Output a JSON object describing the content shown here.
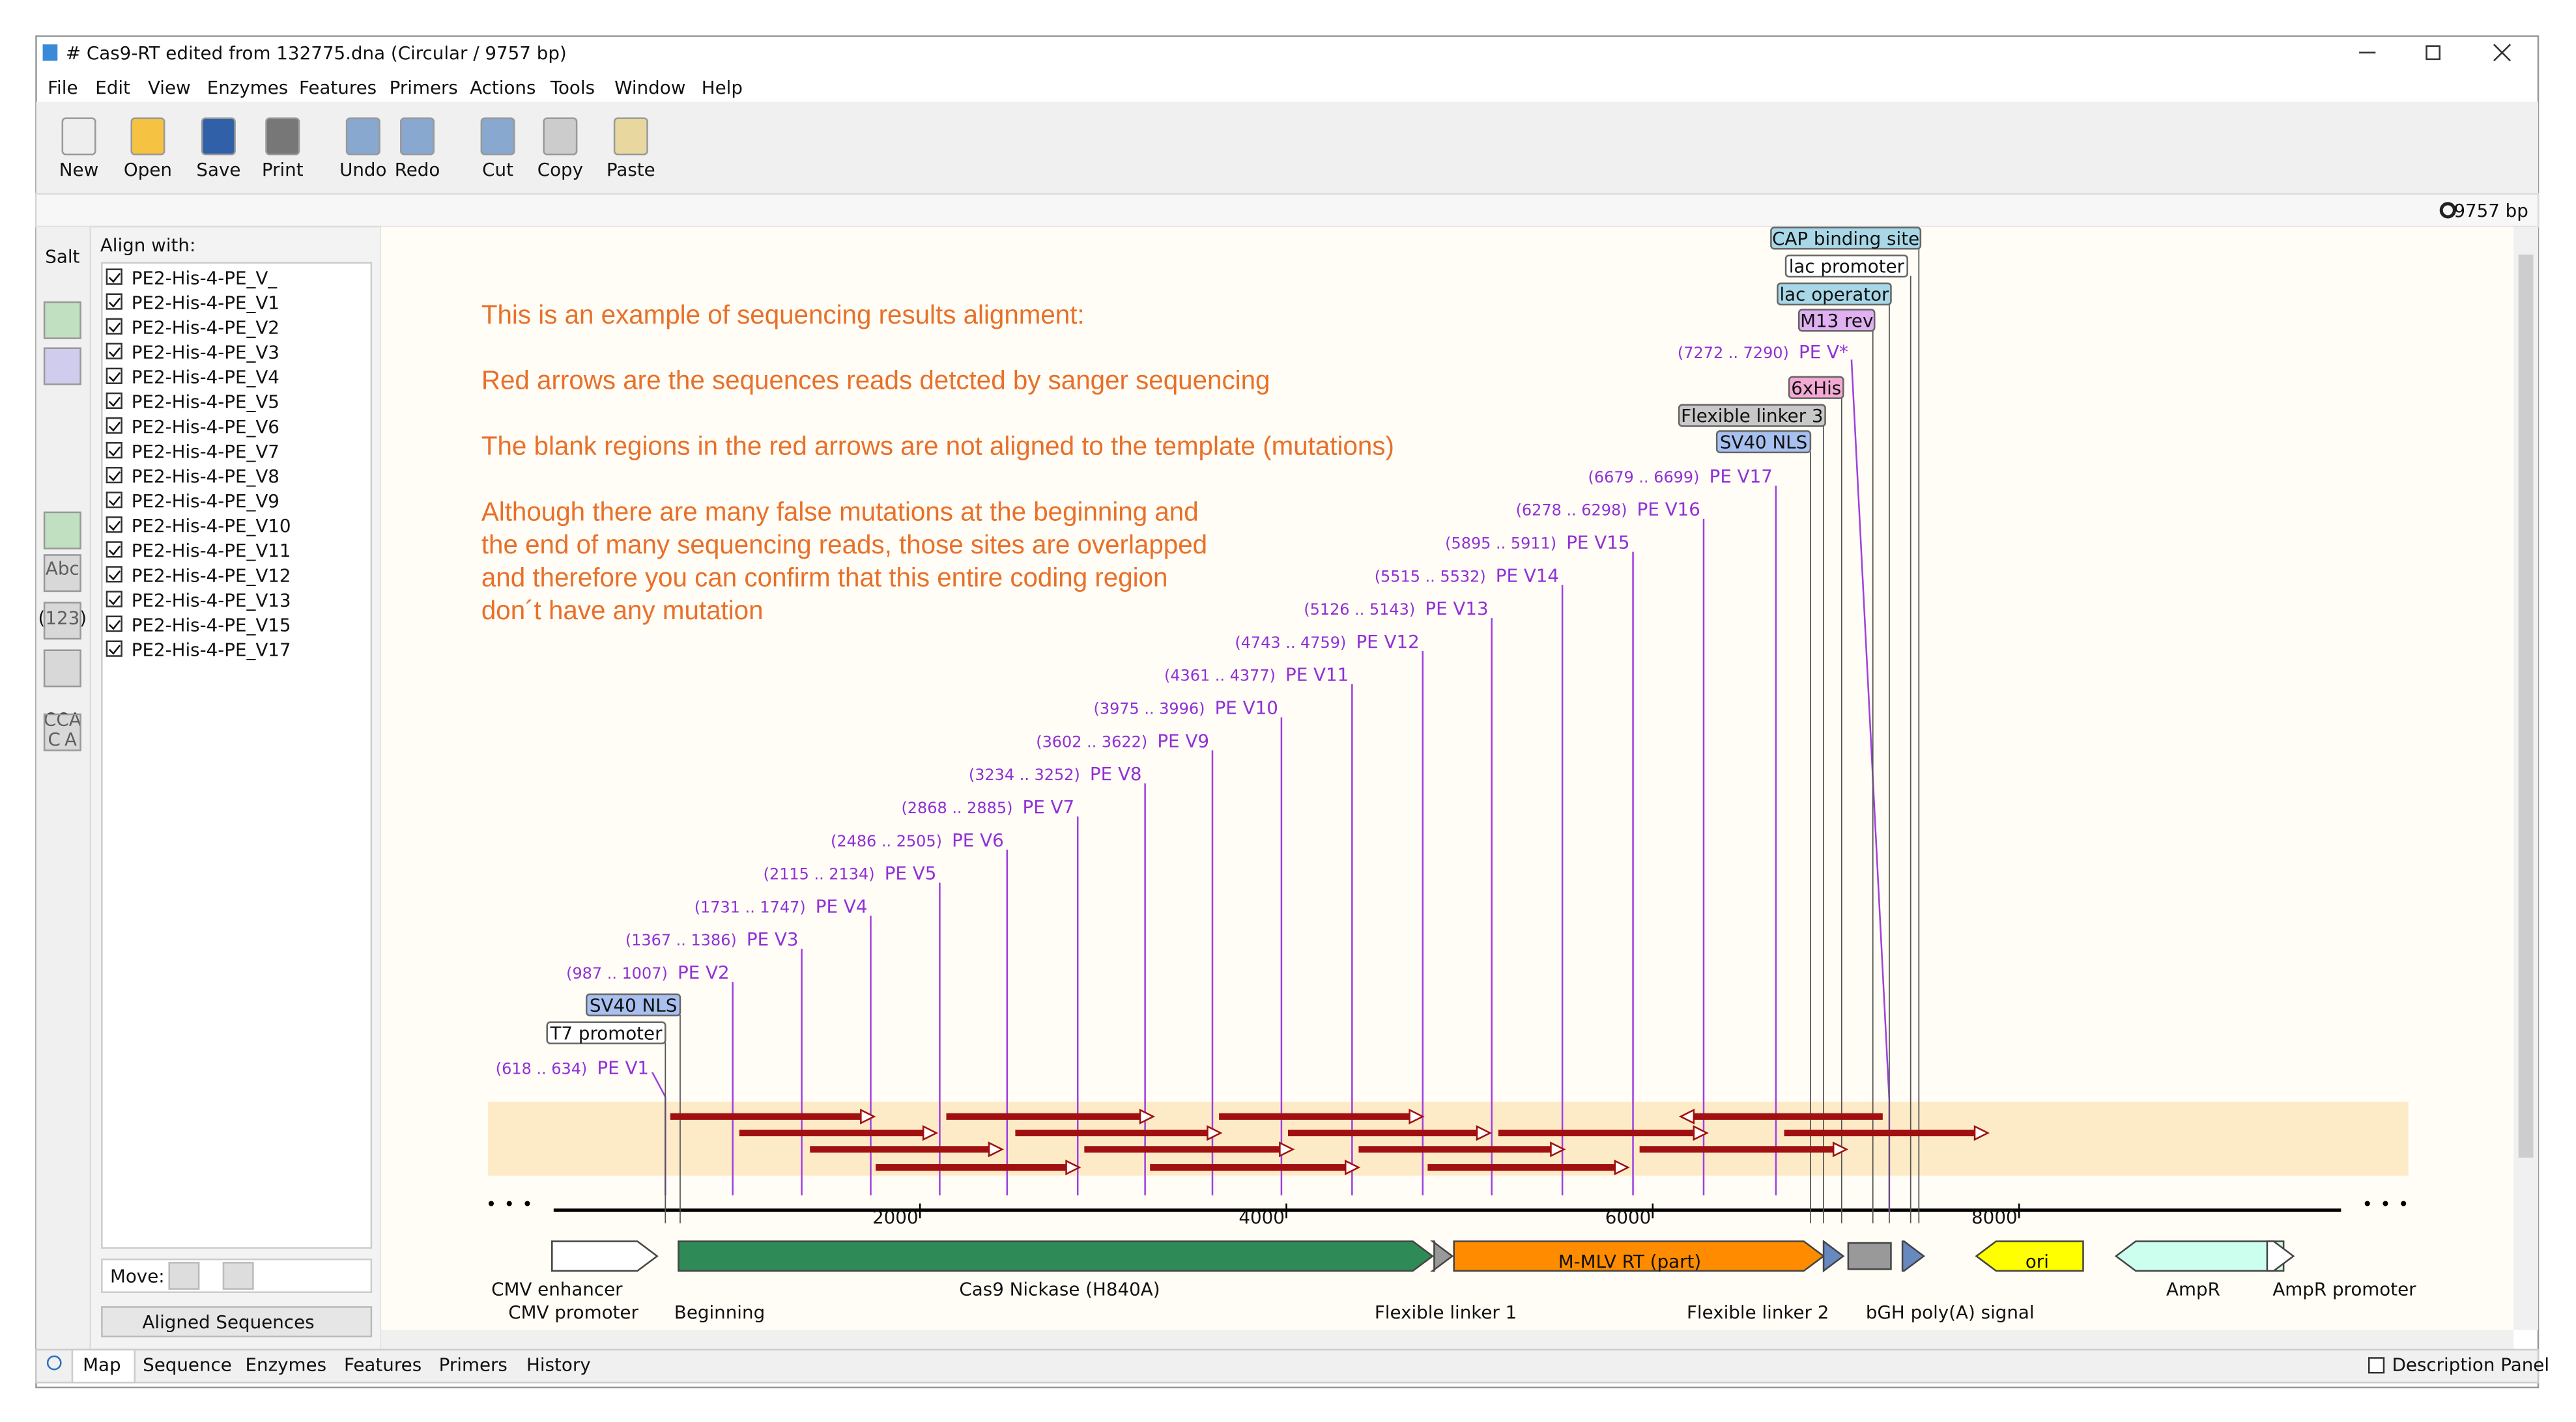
{
  "window": {
    "title": "# Cas9-RT edited from 132775.dna  (Circular / 9757 bp)",
    "menu": [
      "File",
      "Edit",
      "View",
      "Enzymes",
      "Features",
      "Primers",
      "Actions",
      "Tools",
      "Window",
      "Help"
    ],
    "toolbar": [
      "New",
      "Open",
      "Save",
      "Print",
      "Undo",
      "Redo",
      "Cut",
      "Copy",
      "Paste"
    ],
    "status": "9757 bp"
  },
  "left_tools": [
    "Salt",
    "Abc",
    "(123)",
    "CCA",
    "C",
    "A"
  ],
  "align_panel": {
    "title": "Align with:",
    "items": [
      "PE2-His-4-PE_V_",
      "PE2-His-4-PE_V1",
      "PE2-His-4-PE_V2",
      "PE2-His-4-PE_V3",
      "PE2-His-4-PE_V4",
      "PE2-His-4-PE_V5",
      "PE2-His-4-PE_V6",
      "PE2-His-4-PE_V7",
      "PE2-His-4-PE_V8",
      "PE2-His-4-PE_V9",
      "PE2-His-4-PE_V10",
      "PE2-His-4-PE_V11",
      "PE2-His-4-PE_V12",
      "PE2-His-4-PE_V13",
      "PE2-His-4-PE_V15",
      "PE2-His-4-PE_V17"
    ],
    "move_label": "Move:",
    "dropdown": "Aligned Sequences"
  },
  "map": {
    "notes": [
      "This is an example of sequencing results alignment:",
      "Red arrows are the sequences reads detcted by sanger sequencing",
      "The blank regions in the red arrows are not aligned to the template (mutations)",
      "Although there are many false mutations at the beginning and",
      "the end of many sequencing reads, those sites are overlapped",
      "and therefore you can confirm that this entire coding region",
      "don´t have any mutation"
    ],
    "primers": [
      {
        "range": "(618 .. 634)",
        "name": "PE V1"
      },
      {
        "range": "(987 .. 1007)",
        "name": "PE V2"
      },
      {
        "range": "(1367 .. 1386)",
        "name": "PE V3"
      },
      {
        "range": "(1731 .. 1747)",
        "name": "PE V4"
      },
      {
        "range": "(2115 .. 2134)",
        "name": "PE V5"
      },
      {
        "range": "(2486 .. 2505)",
        "name": "PE V6"
      },
      {
        "range": "(2868 .. 2885)",
        "name": "PE V7"
      },
      {
        "range": "(3234 .. 3252)",
        "name": "PE V8"
      },
      {
        "range": "(3602 .. 3622)",
        "name": "PE V9"
      },
      {
        "range": "(3975 .. 3996)",
        "name": "PE V10"
      },
      {
        "range": "(4361 .. 4377)",
        "name": "PE V11"
      },
      {
        "range": "(4743 .. 4759)",
        "name": "PE V12"
      },
      {
        "range": "(5126 .. 5143)",
        "name": "PE V13"
      },
      {
        "range": "(5515 .. 5532)",
        "name": "PE V14"
      },
      {
        "range": "(5895 .. 5911)",
        "name": "PE V15"
      },
      {
        "range": "(6278 .. 6298)",
        "name": "PE V16"
      },
      {
        "range": "(6679 .. 6699)",
        "name": "PE V17"
      },
      {
        "range": "(7272 .. 7290)",
        "name": "PE V*"
      }
    ],
    "top_features": [
      "CAP binding site",
      "lac promoter",
      "lac operator",
      "M13 rev",
      "6xHis",
      "Flexible linker 3",
      "SV40 NLS",
      "SV40 NLS",
      "T7 promoter"
    ],
    "axis_labels": [
      2000,
      4000,
      6000,
      8000
    ],
    "features": [
      "CMV enhancer",
      "CMV promoter",
      "Beginning",
      "Cas9 Nickase (H840A)",
      "M-MLV RT (part)",
      "Flexible linker 1",
      "Flexible linker 2",
      "bGH poly(A) signal",
      "ori",
      "AmpR",
      "AmpR promoter"
    ]
  },
  "tabs": [
    "Map",
    "Sequence",
    "Enzymes",
    "Features",
    "Primers",
    "History"
  ],
  "description_panel": "Description Panel"
}
